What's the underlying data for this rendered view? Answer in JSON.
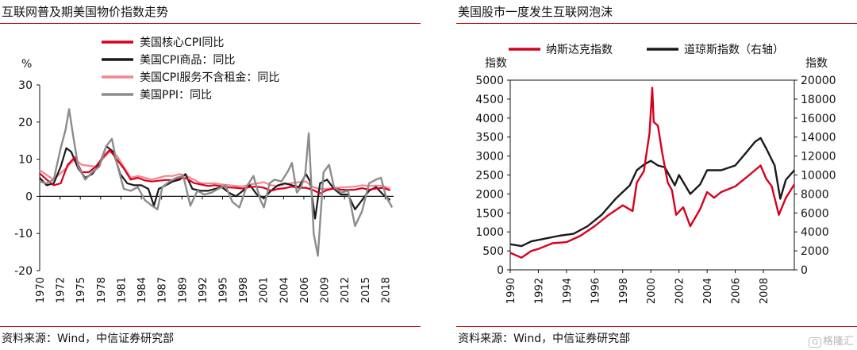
{
  "left": {
    "title": "互联网普及期美国物价指数走势",
    "source": "资料来源：Wind，中信证券研究部",
    "chart_data": {
      "type": "line",
      "ylabel": "%",
      "xlim": [
        1970,
        2020.5
      ],
      "ylim": [
        -20,
        30
      ],
      "y_ticks": [
        30,
        20,
        10,
        0,
        -10,
        -20
      ],
      "x_tick_labels": [
        "1970",
        "1972",
        "1975",
        "1978",
        "1981",
        "1984",
        "1987",
        "1989",
        "1992",
        "1995",
        "1998",
        "2001",
        "2004",
        "2006",
        "2009",
        "2012",
        "2015",
        "2018"
      ],
      "x_tick_values": [
        1970,
        1972.9,
        1975.8,
        1978.7,
        1981.6,
        1984.5,
        1987.4,
        1990.3,
        1993.2,
        1996.1,
        1999,
        2001.9,
        2004.8,
        2007.7,
        2010.6,
        2013.5,
        2016.4,
        2019.3
      ],
      "legend_position": "top-left",
      "series": [
        {
          "name": "美国核心CPI同比",
          "color": "#d7001e",
          "x": [
            1970,
            1971,
            1972,
            1973,
            1974,
            1975,
            1976,
            1977,
            1978,
            1979,
            1980,
            1981,
            1982,
            1983,
            1984,
            1985,
            1986,
            1987,
            1988,
            1989,
            1990,
            1991,
            1992,
            1993,
            1994,
            1995,
            1996,
            1997,
            1998,
            1999,
            2000,
            2001,
            2002,
            2003,
            2004,
            2005,
            2006,
            2007,
            2008,
            2009,
            2010,
            2011,
            2012,
            2013,
            2014,
            2015,
            2016,
            2017,
            2018,
            2019,
            2020
          ],
          "y": [
            6.2,
            4.5,
            3.0,
            3.5,
            8.5,
            10.5,
            6.5,
            6.5,
            8.0,
            10.5,
            12.5,
            10.0,
            7.5,
            4.5,
            5.0,
            4.3,
            4.0,
            4.2,
            4.4,
            4.4,
            5.0,
            4.8,
            3.6,
            3.2,
            2.8,
            3.0,
            2.7,
            2.4,
            2.3,
            2.1,
            2.5,
            2.6,
            2.3,
            1.5,
            2.0,
            2.2,
            2.6,
            2.3,
            2.3,
            1.7,
            0.8,
            1.7,
            2.1,
            1.8,
            1.7,
            1.8,
            2.2,
            1.8,
            2.1,
            2.3,
            1.6
          ]
        },
        {
          "name": "美国CPI商品：同比",
          "color": "#1a1a1a",
          "x": [
            1970,
            1971,
            1972,
            1973,
            1973.8,
            1974.5,
            1975.5,
            1976.5,
            1977.5,
            1978.5,
            1979.5,
            1980.5,
            1981.5,
            1982.5,
            1983.5,
            1984.5,
            1985.5,
            1986.3,
            1987,
            1988,
            1989,
            1990,
            1990.8,
            1991.8,
            1993,
            1994,
            1995,
            1996,
            1997,
            1998,
            1999,
            2000,
            2001,
            2002,
            2003,
            2004,
            2005,
            2006,
            2007,
            2008,
            2008.6,
            2009.3,
            2010,
            2011,
            2012,
            2013,
            2014,
            2015,
            2016,
            2017,
            2018,
            2019,
            2020
          ],
          "y": [
            5.0,
            3.0,
            3.5,
            8.0,
            13.0,
            12.0,
            7.5,
            5.0,
            6.0,
            8.5,
            13.5,
            12.0,
            6.0,
            3.5,
            3.0,
            3.0,
            2.0,
            -2.5,
            2.0,
            3.0,
            4.0,
            4.5,
            6.0,
            2.0,
            1.5,
            1.5,
            2.0,
            2.5,
            1.0,
            0.0,
            1.5,
            3.0,
            0.5,
            -0.5,
            1.5,
            3.0,
            3.5,
            3.0,
            2.5,
            6.0,
            4.0,
            -6.0,
            3.5,
            4.5,
            2.0,
            0.5,
            0.5,
            -3.5,
            -1.0,
            1.5,
            2.5,
            0.5,
            -1.0
          ]
        },
        {
          "name": "美国CPI服务不含租金：同比",
          "color": "#f2878e",
          "x": [
            1970,
            1972,
            1974,
            1975,
            1976,
            1978,
            1980,
            1981,
            1982,
            1983,
            1984,
            1985,
            1986,
            1987,
            1988,
            1989,
            1990,
            1991,
            1992,
            1993,
            1994,
            1995,
            1996,
            1997,
            1998,
            1999,
            2000,
            2001,
            2002,
            2003,
            2004,
            2005,
            2006,
            2007,
            2008,
            2009,
            2010,
            2011,
            2012,
            2013,
            2014,
            2015,
            2016,
            2017,
            2018,
            2019,
            2020
          ],
          "y": [
            7.0,
            4.5,
            8.0,
            10.0,
            8.5,
            8.0,
            12.0,
            11.0,
            8.0,
            5.0,
            5.5,
            5.0,
            4.5,
            5.0,
            5.5,
            5.5,
            6.0,
            5.5,
            4.5,
            3.5,
            3.5,
            3.5,
            3.2,
            3.0,
            2.8,
            2.7,
            3.2,
            3.5,
            3.8,
            3.0,
            2.8,
            3.3,
            3.6,
            3.8,
            4.0,
            2.5,
            2.0,
            2.0,
            2.3,
            2.4,
            2.5,
            2.6,
            3.0,
            2.8,
            2.9,
            2.8,
            2.0
          ]
        },
        {
          "name": "美国PPI：同比",
          "color": "#8c8c8c",
          "x": [
            1970,
            1971,
            1972,
            1973,
            1973.7,
            1974.2,
            1974.8,
            1975.5,
            1976.5,
            1977.5,
            1978.5,
            1979.5,
            1980.3,
            1981,
            1982,
            1983,
            1984,
            1985,
            1986,
            1986.8,
            1987.5,
            1988.5,
            1989.5,
            1990.5,
            1991.5,
            1992.5,
            1993.5,
            1994.5,
            1995.5,
            1996.5,
            1997.5,
            1998.5,
            1999.5,
            2000.5,
            2001.5,
            2002,
            2002.8,
            2003.5,
            2004.5,
            2005.5,
            2006,
            2006.7,
            2007.3,
            2007.9,
            2008.4,
            2009.1,
            2009.7,
            2010.5,
            2011.3,
            2012,
            2013,
            2014,
            2015,
            2016,
            2017,
            2018,
            2018.7,
            2019.4,
            2020.3
          ],
          "y": [
            4.0,
            3.5,
            4.5,
            13.0,
            18.0,
            23.5,
            16.0,
            8.0,
            4.5,
            6.5,
            8.0,
            13.5,
            15.5,
            9.0,
            2.0,
            1.5,
            2.5,
            -1.0,
            -2.5,
            -3.5,
            2.5,
            4.0,
            5.0,
            5.5,
            -2.5,
            1.5,
            0.5,
            1.0,
            2.0,
            3.0,
            -1.5,
            -3.0,
            2.5,
            5.5,
            -1.0,
            -3.0,
            3.5,
            4.5,
            4.0,
            7.0,
            9.0,
            1.0,
            2.5,
            6.0,
            17.0,
            -10.0,
            -16.0,
            6.5,
            8.5,
            2.5,
            1.0,
            1.5,
            -8.0,
            -4.0,
            3.5,
            4.5,
            5.0,
            0.0,
            -3.0
          ]
        }
      ]
    }
  },
  "right": {
    "title": "美国股市一度发生互联网泡沫",
    "source": "资料来源：Wind，中信证券研究部",
    "watermark": "格隆汇",
    "chart_data": {
      "type": "line",
      "ylabel_left": "指数",
      "ylabel_right": "指数",
      "xlim": [
        1990,
        2010.2
      ],
      "ylim_left": [
        0,
        5000
      ],
      "ylim_right": [
        0,
        20000
      ],
      "y_ticks_left": [
        5000,
        4500,
        4000,
        3500,
        3000,
        2500,
        2000,
        1500,
        1000,
        500,
        0
      ],
      "y_ticks_right": [
        20000,
        18000,
        16000,
        14000,
        12000,
        10000,
        8000,
        6000,
        4000,
        2000,
        0
      ],
      "x_ticks": [
        "1990",
        "1992",
        "1994",
        "1996",
        "1998",
        "2000",
        "2002",
        "2004",
        "2006",
        "2008"
      ],
      "legend_position": "top",
      "series": [
        {
          "name": "纳斯达克指数",
          "color": "#d7001e",
          "axis": "left",
          "x": [
            1990,
            1990.8,
            1991.5,
            1992,
            1993,
            1994,
            1995,
            1996,
            1997,
            1998,
            1998.7,
            1999,
            1999.5,
            1999.9,
            2000.1,
            2000.2,
            2000.5,
            2000.8,
            2001.2,
            2001.5,
            2001.8,
            2002.3,
            2002.8,
            2003.5,
            2004,
            2004.5,
            2005,
            2006,
            2007,
            2007.8,
            2008.2,
            2008.6,
            2009.1,
            2009.6,
            2010.2
          ],
          "y": [
            450,
            320,
            500,
            550,
            700,
            730,
            900,
            1150,
            1450,
            1700,
            1550,
            2300,
            2600,
            3600,
            4800,
            3900,
            3800,
            3100,
            2300,
            2100,
            1450,
            1650,
            1150,
            1600,
            2050,
            1900,
            2050,
            2200,
            2500,
            2750,
            2400,
            2200,
            1450,
            1900,
            2250
          ]
        },
        {
          "name": "道琼斯指数（右轴）",
          "color": "#1a1a1a",
          "axis": "right",
          "x": [
            1990,
            1990.8,
            1991.5,
            1992.5,
            1993.5,
            1994.5,
            1995.5,
            1996.5,
            1997.5,
            1998.5,
            1999,
            1999.5,
            2000,
            2000.5,
            2001,
            2001.7,
            2002,
            2002.8,
            2003.5,
            2004,
            2005,
            2006,
            2006.8,
            2007.4,
            2007.8,
            2008.2,
            2008.8,
            2009.2,
            2009.6,
            2010.2
          ],
          "y": [
            2700,
            2500,
            3000,
            3300,
            3600,
            3800,
            4600,
            5800,
            7500,
            8900,
            10500,
            11100,
            11500,
            11000,
            10800,
            8900,
            10000,
            8000,
            9000,
            10500,
            10500,
            11000,
            12400,
            13500,
            13900,
            12800,
            11000,
            7500,
            9500,
            10500
          ]
        }
      ]
    }
  }
}
